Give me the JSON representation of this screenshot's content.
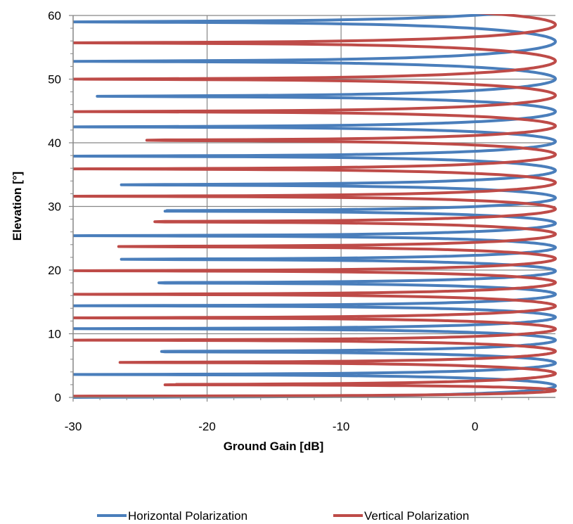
{
  "chart_data": {
    "type": "line",
    "xlabel": "Ground Gain [dB]",
    "ylabel": "Elevation [°]",
    "xlim": [
      -30,
      6
    ],
    "ylim": [
      0,
      60
    ],
    "x_ticks": [
      -30,
      -20,
      -10,
      0
    ],
    "y_ticks": [
      0,
      10,
      20,
      30,
      40,
      50,
      60
    ],
    "x_tick_labels": [
      "-30",
      "-20",
      "-10",
      "0"
    ],
    "y_tick_labels": [
      "0",
      "10",
      "20",
      "30",
      "40",
      "50",
      "60"
    ],
    "grid": true,
    "legend_position": "bottom",
    "series": [
      {
        "name": "Horizontal Polarization",
        "color": "#4a7ebb",
        "max_gain_db": 6.0,
        "null_elevations_deg": [
          0,
          3.6,
          7.2,
          10.8,
          14.4,
          18.0,
          21.7,
          25.4,
          29.3,
          33.4,
          37.9,
          42.5,
          47.3,
          52.8,
          59.0
        ],
        "null_depths_db": [
          -30,
          -30,
          -23.4,
          -30,
          -30,
          -23.6,
          -26.4,
          -30,
          -23.0,
          -26.4,
          -30,
          -30,
          -28.2,
          -30,
          -30
        ]
      },
      {
        "name": "Vertical Polarization",
        "color": "#be4b48",
        "max_gain_db": 6.0,
        "null_elevations_deg": [
          0.2,
          2.0,
          5.5,
          9.0,
          12.5,
          16.2,
          19.9,
          23.7,
          27.6,
          31.6,
          35.9,
          40.4,
          44.9,
          50.0,
          55.7
        ],
        "null_depths_db": [
          -30,
          -22.3,
          -26.5,
          -30,
          -30,
          -30,
          -30,
          -26.6,
          -23.9,
          -30,
          -30,
          -24.5,
          -30,
          -30,
          -30
        ]
      }
    ]
  }
}
